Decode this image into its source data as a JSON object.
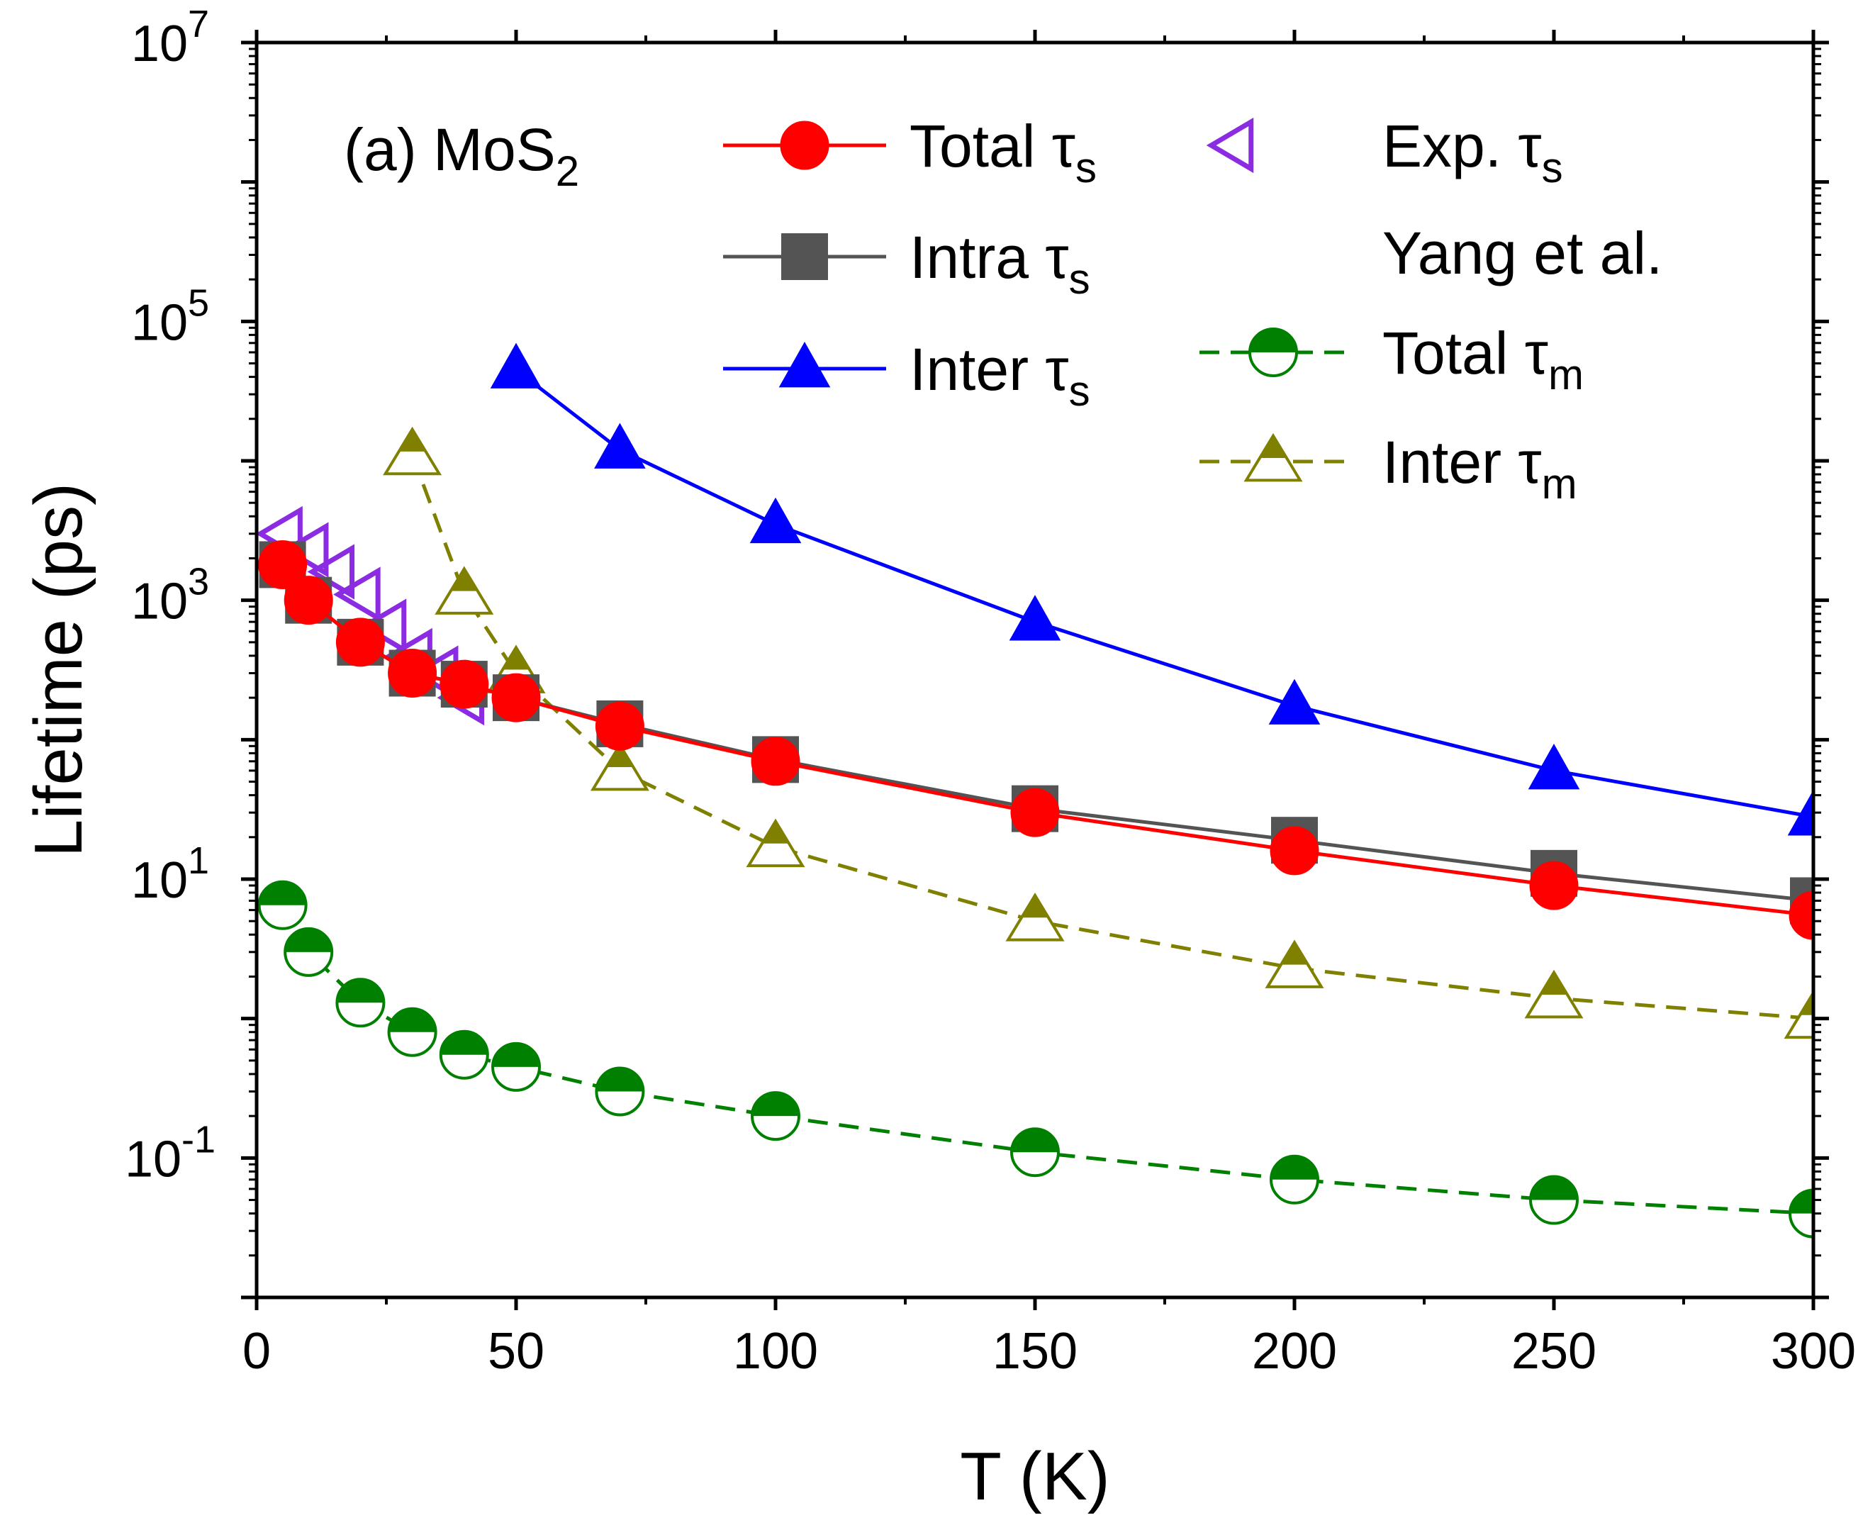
{
  "chart_data": {
    "type": "scatter",
    "annotation": {
      "label": "(a) MoS",
      "sub": "2"
    },
    "xlabel": "T (K)",
    "ylabel": "Lifetime (ps)",
    "xlim": [
      0,
      300
    ],
    "ylim": [
      0.01,
      10000000
    ],
    "yscale": "log",
    "x_ticks": [
      0,
      50,
      100,
      150,
      200,
      250,
      300
    ],
    "y_ticks": [
      {
        "value": 0.1,
        "base": "10",
        "exp": "-1"
      },
      {
        "value": 10,
        "base": "10",
        "exp": "1"
      },
      {
        "value": 1000,
        "base": "10",
        "exp": "3"
      },
      {
        "value": 100000,
        "base": "10",
        "exp": "5"
      },
      {
        "value": 10000000,
        "base": "10",
        "exp": "7"
      }
    ],
    "series": [
      {
        "name": "Total τs",
        "label": "Total τ",
        "sub": "s",
        "color": "#ff0000",
        "line": "solid",
        "marker": "circle-filled",
        "x": [
          5,
          10,
          20,
          30,
          40,
          50,
          70,
          100,
          150,
          200,
          250,
          300
        ],
        "y": [
          1800,
          1000,
          500,
          300,
          250,
          200,
          125,
          70,
          30,
          16,
          9,
          5.5
        ]
      },
      {
        "name": "Intra τs",
        "label": "Intra τ",
        "sub": "s",
        "color": "#545454",
        "line": "solid",
        "marker": "square-filled",
        "x": [
          5,
          10,
          20,
          30,
          40,
          50,
          70,
          100,
          150,
          200,
          250,
          300
        ],
        "y": [
          1800,
          1000,
          500,
          300,
          250,
          200,
          130,
          72,
          32,
          19,
          11,
          7
        ]
      },
      {
        "name": "Inter τs",
        "label": "Inter τ",
        "sub": "s",
        "color": "#0000ff",
        "line": "solid",
        "marker": "triangle-filled",
        "x": [
          50,
          70,
          100,
          150,
          200,
          250,
          300
        ],
        "y": [
          45000,
          12000,
          3500,
          700,
          175,
          60,
          28
        ]
      },
      {
        "name": "Exp. τs Yang et al.",
        "label": "Exp. τ",
        "sub": "s",
        "label2": "Yang et al.",
        "color": "#8b2be2",
        "line": "none",
        "marker": "triangle-left-open",
        "x": [
          5,
          10,
          15,
          20,
          25,
          30,
          35,
          40
        ],
        "y": [
          3000,
          2300,
          1600,
          1100,
          650,
          400,
          300,
          200
        ]
      },
      {
        "name": "Total τm",
        "label": "Total τ",
        "sub": "m",
        "color": "#008000",
        "line": "dashed",
        "marker": "circle-half",
        "x": [
          5,
          10,
          20,
          30,
          40,
          50,
          70,
          100,
          150,
          200,
          250,
          300
        ],
        "y": [
          6.5,
          3.0,
          1.3,
          0.8,
          0.55,
          0.45,
          0.3,
          0.2,
          0.11,
          0.07,
          0.05,
          0.04
        ]
      },
      {
        "name": "Inter τm",
        "label": "Inter τ",
        "sub": "m",
        "color": "#808000",
        "line": "dashed",
        "marker": "triangle-half",
        "x": [
          30,
          40,
          50,
          70,
          100,
          150,
          200,
          250,
          300
        ],
        "y": [
          11000,
          1100,
          300,
          60,
          17,
          5,
          2.3,
          1.4,
          1.0
        ]
      }
    ]
  }
}
